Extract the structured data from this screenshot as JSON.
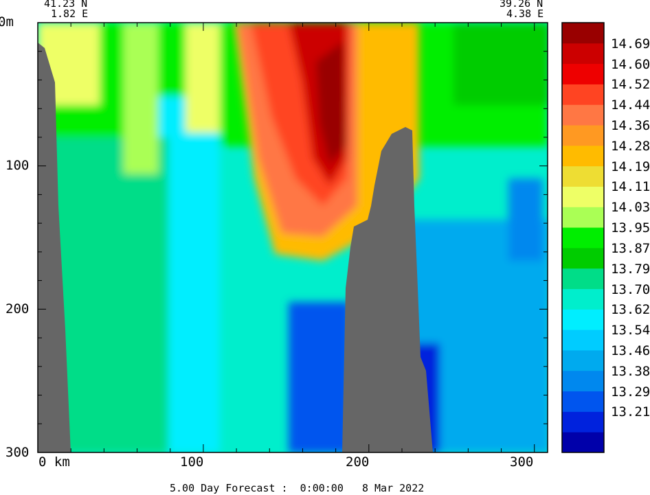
{
  "chart_data": {
    "type": "heatmap",
    "title": "5.00 Day Forecast :  0:00:00   8 Mar 2022",
    "corner_left": {
      "lat": "41.23 N",
      "lon": "1.82 E"
    },
    "corner_right": {
      "lat": "39.26 N",
      "lon": "4.38 E"
    },
    "x_axis": {
      "unit": "km",
      "range": [
        0,
        308
      ],
      "ticks": [
        0,
        100,
        200,
        300
      ],
      "tick_labels": [
        "0  km",
        "100",
        "200",
        "300"
      ]
    },
    "y_axis": {
      "unit": "m",
      "range": [
        0,
        300
      ],
      "reversed": true,
      "ticks": [
        0,
        100,
        200,
        300
      ],
      "tick_labels": [
        "0m",
        "100",
        "200",
        "300"
      ]
    },
    "colorbar": {
      "colors": [
        "#0000aa",
        "#0022dd",
        "#0055ee",
        "#0088ee",
        "#00aaee",
        "#00ccff",
        "#00eeff",
        "#00eecc",
        "#00dd88",
        "#00cc00",
        "#00ee00",
        "#aaff55",
        "#eeff66",
        "#eedd33",
        "#ffbb00",
        "#ff9922",
        "#ff7744",
        "#ff4422",
        "#ee0000",
        "#cc0000",
        "#990000"
      ],
      "labels": [
        "13.21",
        "13.29",
        "13.38",
        "13.46",
        "13.54",
        "13.62",
        "13.70",
        "13.79",
        "13.87",
        "13.95",
        "14.03",
        "14.11",
        "14.19",
        "14.28",
        "14.36",
        "14.44",
        "14.52",
        "14.60",
        "14.69"
      ]
    },
    "bathymetry_color": "#666666"
  }
}
